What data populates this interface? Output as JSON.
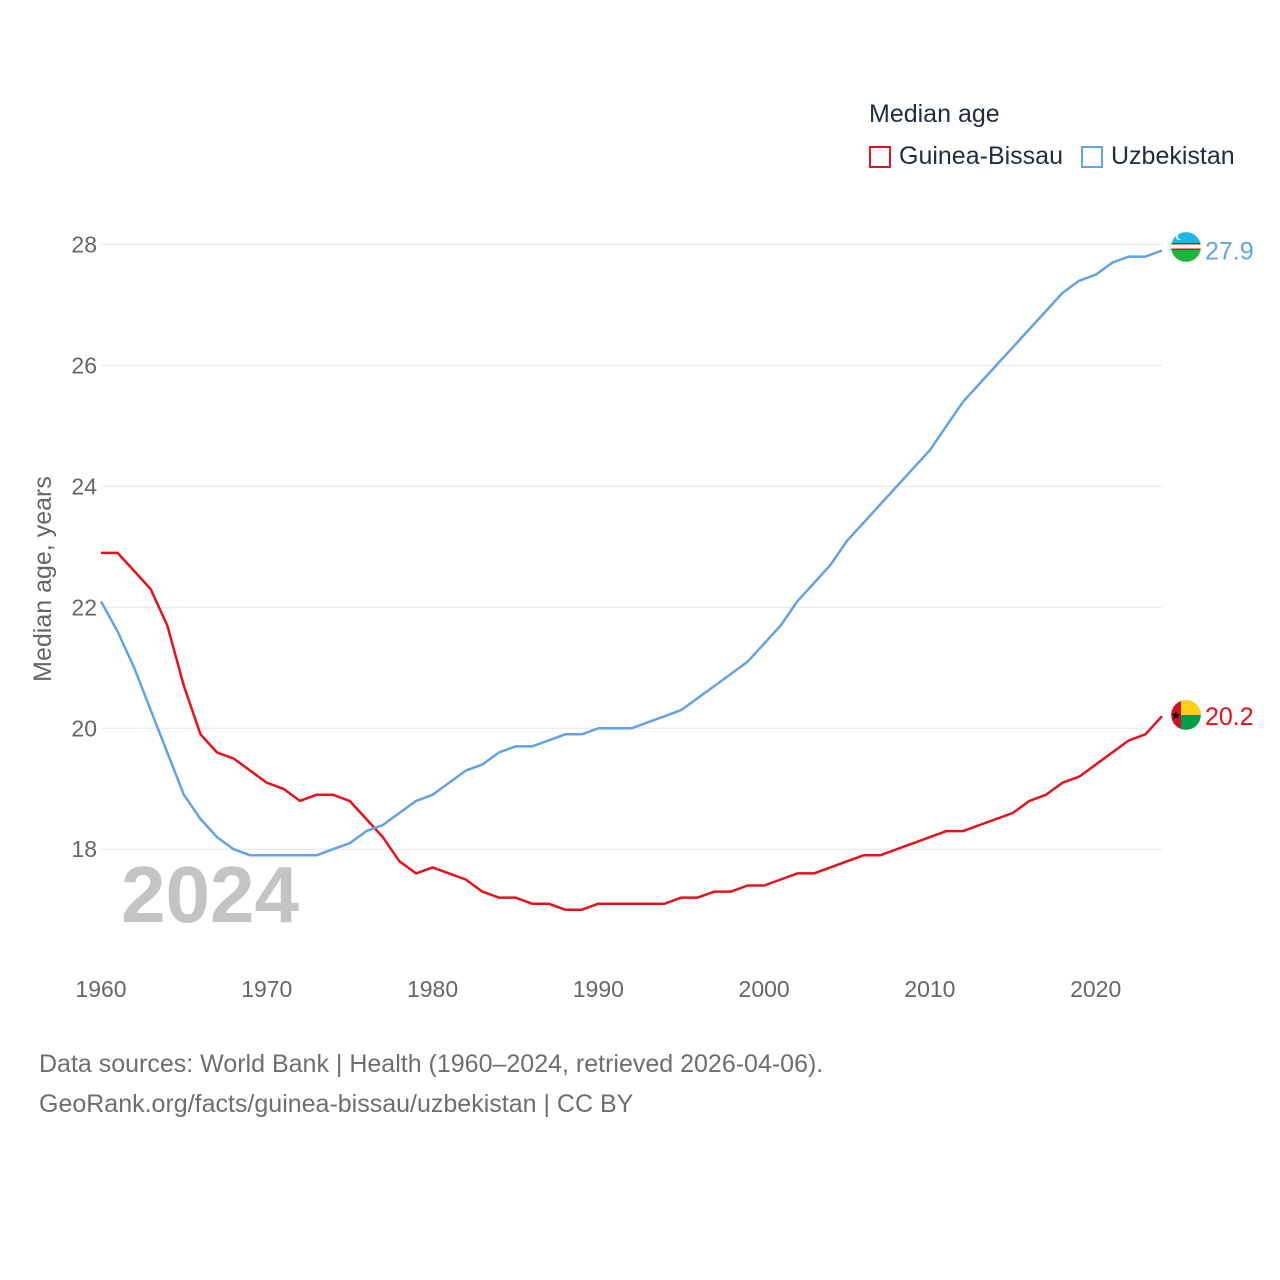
{
  "chart_data": {
    "type": "line",
    "title": "Median age",
    "ylabel": "Median age, years",
    "xlabel": "",
    "ylim": [
      16.4,
      29
    ],
    "xlim": [
      1960,
      2024
    ],
    "yticks": [
      18,
      20,
      22,
      24,
      26,
      28
    ],
    "xticks": [
      1960,
      1970,
      1980,
      1990,
      2000,
      2010,
      2020
    ],
    "grid": true,
    "legend_position": "top-right",
    "year_watermark": "2024",
    "x": [
      1960,
      1961,
      1962,
      1963,
      1964,
      1965,
      1966,
      1967,
      1968,
      1969,
      1970,
      1971,
      1972,
      1973,
      1974,
      1975,
      1976,
      1977,
      1978,
      1979,
      1980,
      1981,
      1982,
      1983,
      1984,
      1985,
      1986,
      1987,
      1988,
      1989,
      1990,
      1991,
      1992,
      1993,
      1994,
      1995,
      1996,
      1997,
      1998,
      1999,
      2000,
      2001,
      2002,
      2003,
      2004,
      2005,
      2006,
      2007,
      2008,
      2009,
      2010,
      2011,
      2012,
      2013,
      2014,
      2015,
      2016,
      2017,
      2018,
      2019,
      2020,
      2021,
      2022,
      2023,
      2024
    ],
    "series": [
      {
        "name": "Guinea-Bissau",
        "color": "#e8111b",
        "end_label": "20.2",
        "values": [
          22.9,
          22.9,
          22.6,
          22.3,
          21.7,
          20.7,
          19.9,
          19.6,
          19.5,
          19.3,
          19.1,
          19.0,
          18.8,
          18.9,
          18.9,
          18.8,
          18.5,
          18.2,
          17.8,
          17.6,
          17.7,
          17.6,
          17.5,
          17.3,
          17.2,
          17.2,
          17.1,
          17.1,
          17.0,
          17.0,
          17.1,
          17.1,
          17.1,
          17.1,
          17.1,
          17.2,
          17.2,
          17.3,
          17.3,
          17.4,
          17.4,
          17.5,
          17.6,
          17.6,
          17.7,
          17.8,
          17.9,
          17.9,
          18.0,
          18.1,
          18.2,
          18.3,
          18.3,
          18.4,
          18.5,
          18.6,
          18.8,
          18.9,
          19.1,
          19.2,
          19.4,
          19.6,
          19.8,
          19.9,
          20.2
        ]
      },
      {
        "name": "Uzbekistan",
        "color": "#62a3e3",
        "end_label": "27.9",
        "values": [
          22.1,
          21.6,
          21.0,
          20.3,
          19.6,
          18.9,
          18.5,
          18.2,
          18.0,
          17.9,
          17.9,
          17.9,
          17.9,
          17.9,
          18.0,
          18.1,
          18.3,
          18.4,
          18.6,
          18.8,
          18.9,
          19.1,
          19.3,
          19.4,
          19.6,
          19.7,
          19.7,
          19.8,
          19.9,
          19.9,
          20.0,
          20.0,
          20.0,
          20.1,
          20.2,
          20.3,
          20.5,
          20.7,
          20.9,
          21.1,
          21.4,
          21.7,
          22.1,
          22.4,
          22.7,
          23.1,
          23.4,
          23.7,
          24.0,
          24.3,
          24.6,
          25.0,
          25.4,
          25.7,
          26.0,
          26.3,
          26.6,
          26.9,
          27.2,
          27.4,
          27.5,
          27.7,
          27.8,
          27.8,
          27.9
        ]
      }
    ]
  },
  "legend": {
    "title": "Median age",
    "items": [
      {
        "label": "Guinea-Bissau",
        "color": "#e8111b"
      },
      {
        "label": "Uzbekistan",
        "color": "#62a3e3"
      }
    ]
  },
  "flags": {
    "guinea_bissau": "guinea-bissau-flag-icon",
    "uzbekistan": "uzbekistan-flag-icon"
  },
  "footer": {
    "line1": "Data sources: World Bank | Health (1960–2024, retrieved 2026-04-06).",
    "line2": "GeoRank.org/facts/guinea-bissau/uzbekistan | CC BY"
  }
}
